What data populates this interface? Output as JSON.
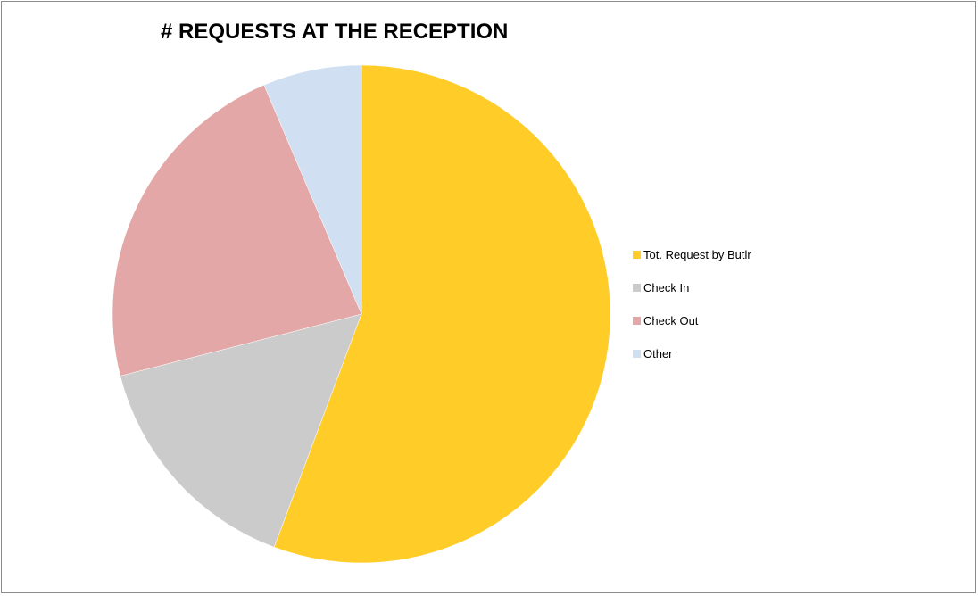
{
  "chart_data": {
    "type": "pie",
    "title": "# REQUESTS AT THE RECEPTION",
    "legend_position": "right",
    "slices": [
      {
        "label": "Tot. Request by Butlr",
        "value": 55.7,
        "color": "#FFCC28"
      },
      {
        "label": "Check In",
        "value": 15.3,
        "color": "#CBCBCB"
      },
      {
        "label": "Check Out",
        "value": 22.6,
        "color": "#E2A7A6"
      },
      {
        "label": "Other",
        "value": 6.4,
        "color": "#D0E0F2"
      }
    ]
  }
}
